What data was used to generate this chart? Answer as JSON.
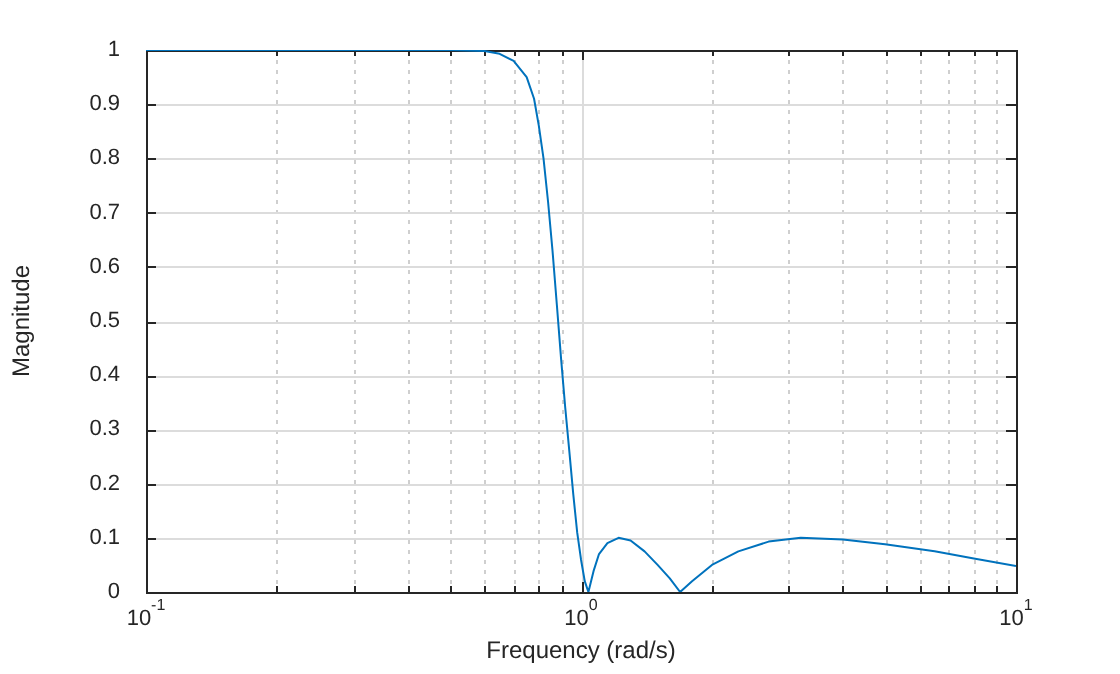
{
  "chart_data": {
    "type": "line",
    "xlabel": "Frequency (rad/s)",
    "ylabel": "Magnitude",
    "log": "x",
    "grid": true,
    "legend": false,
    "marker": "none",
    "line_style": "solid",
    "xlim": [
      0.1,
      10
    ],
    "ylim": [
      0,
      1
    ],
    "xticks": [
      {
        "value": 0.1,
        "label": "10$^{-1}$"
      },
      {
        "value": 0.2,
        "label": null
      },
      {
        "value": 0.3,
        "label": null
      },
      {
        "value": 0.4,
        "label": null
      },
      {
        "value": 0.5,
        "label": null
      },
      {
        "value": 0.6,
        "label": null
      },
      {
        "value": 0.7,
        "label": null
      },
      {
        "value": 0.8,
        "label": null
      },
      {
        "value": 0.9,
        "label": null
      },
      {
        "value": 1,
        "label": "10$^{0}$"
      },
      {
        "value": 2,
        "label": null
      },
      {
        "value": 3,
        "label": null
      },
      {
        "value": 4,
        "label": null
      },
      {
        "value": 5,
        "label": null
      },
      {
        "value": 6,
        "label": null
      },
      {
        "value": 7,
        "label": null
      },
      {
        "value": 8,
        "label": null
      },
      {
        "value": 9,
        "label": null
      },
      {
        "value": 10,
        "label": "10$^{1}$"
      }
    ],
    "yticks": [
      0,
      0.1,
      0.2,
      0.3,
      0.4,
      0.5,
      0.6,
      0.7,
      0.8,
      0.9,
      1
    ],
    "x": [
      0.1,
      0.3,
      0.5,
      0.6,
      0.65,
      0.7,
      0.75,
      0.78,
      0.8,
      0.82,
      0.84,
      0.86,
      0.88,
      0.9,
      0.92,
      0.94,
      0.96,
      0.98,
      1.0,
      1.02,
      1.04,
      1.07,
      1.1,
      1.15,
      1.22,
      1.3,
      1.4,
      1.5,
      1.6,
      1.69,
      1.8,
      2.0,
      2.3,
      2.7,
      3.2,
      4,
      5,
      6.5,
      8,
      10
    ],
    "series": [
      {
        "color": "#0072bd",
        "values": [
          1,
          1,
          1,
          0.998,
          0.993,
          0.98,
          0.95,
          0.91,
          0.86,
          0.8,
          0.72,
          0.63,
          0.53,
          0.43,
          0.34,
          0.26,
          0.18,
          0.11,
          0.06,
          0.02,
          0,
          0.04,
          0.07,
          0.09,
          0.1,
          0.095,
          0.075,
          0.05,
          0.025,
          0,
          0.02,
          0.05,
          0.075,
          0.093,
          0.1,
          0.097,
          0.088,
          0.075,
          0.062,
          0.048
        ]
      }
    ]
  }
}
